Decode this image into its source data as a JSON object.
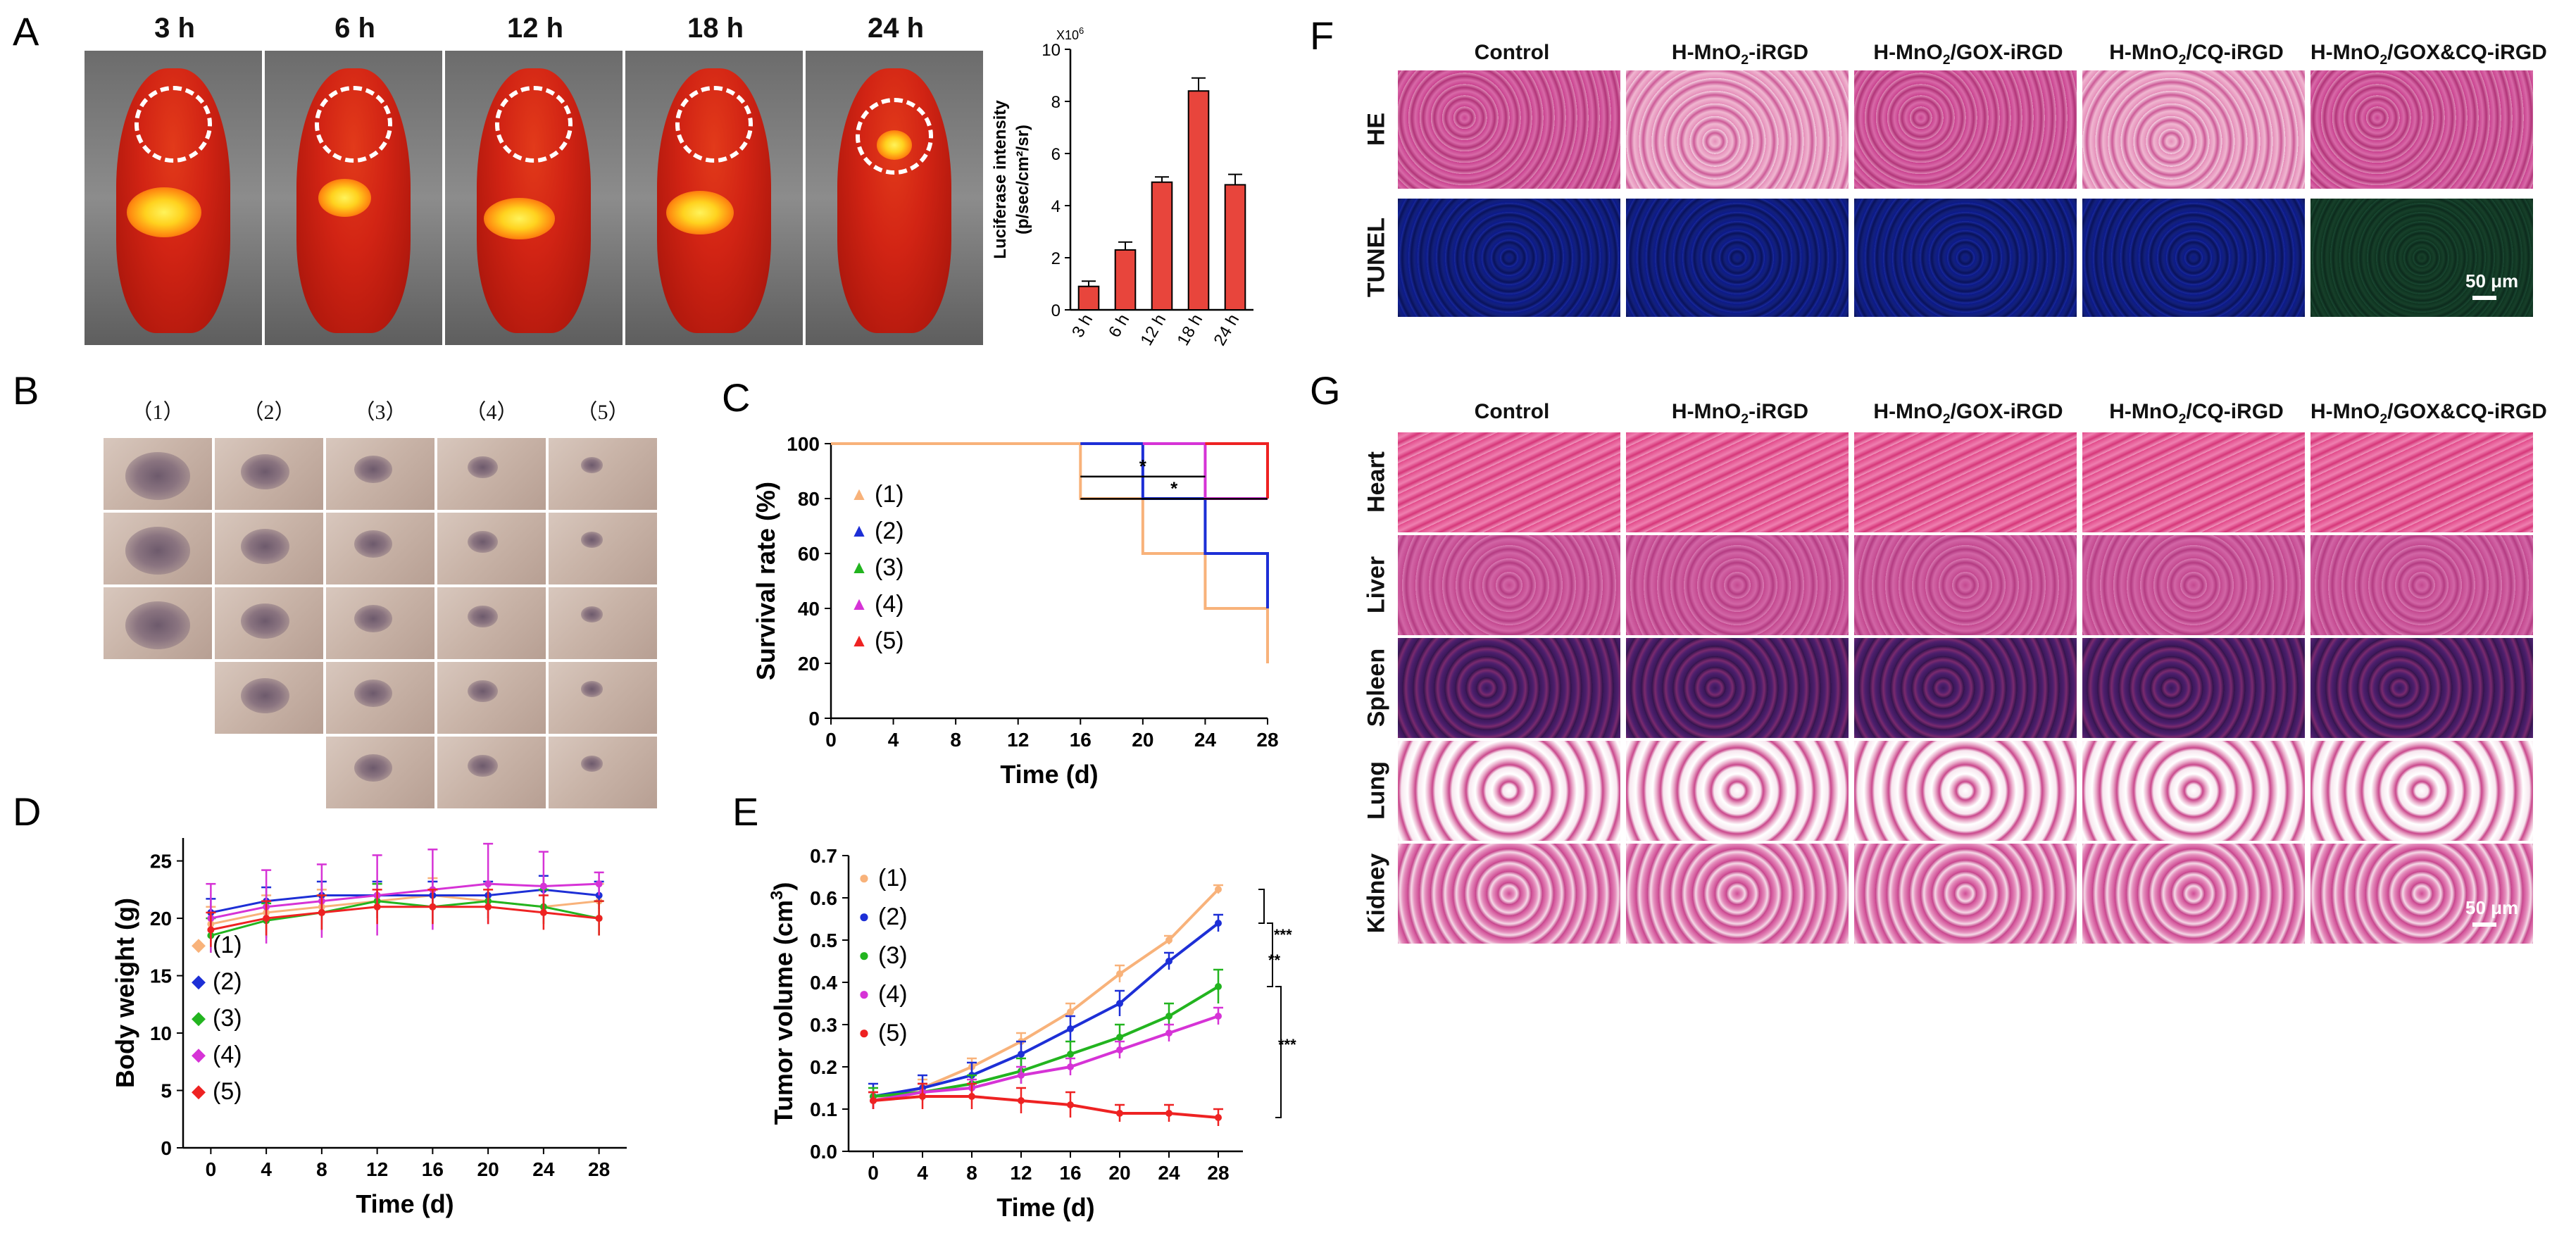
{
  "panels": {
    "A": "A",
    "B": "B",
    "C": "C",
    "D": "D",
    "E": "E",
    "F": "F",
    "G": "G"
  },
  "panelA": {
    "time_labels": [
      "3 h",
      "6 h",
      "12 h",
      "18 h",
      "24 h"
    ]
  },
  "panelB": {
    "group_labels": [
      "（1）",
      "（2）",
      "（3）",
      "（4）",
      "（5）"
    ]
  },
  "panelF": {
    "columns": [
      "Control",
      "H-MnO",
      "-iRGD",
      "H-MnO",
      "/GOX-iRGD",
      "H-MnO",
      "/CQ-iRGD",
      "H-MnO",
      "/GOX&CQ-iRGD"
    ],
    "column_titles": [
      {
        "a": "Control",
        "sub": "",
        "b": ""
      },
      {
        "a": "H-MnO",
        "sub": "2",
        "b": "-iRGD"
      },
      {
        "a": "H-MnO",
        "sub": "2",
        "b": "/GOX-iRGD"
      },
      {
        "a": "H-MnO",
        "sub": "2",
        "b": "/CQ-iRGD"
      },
      {
        "a": "H-MnO",
        "sub": "2",
        "b": "/GOX&CQ-iRGD"
      }
    ],
    "rows": [
      "HE",
      "TUNEL"
    ],
    "scale_label": "50 μm"
  },
  "panelG": {
    "column_titles": [
      {
        "a": "Control",
        "sub": "",
        "b": ""
      },
      {
        "a": "H-MnO",
        "sub": "2",
        "b": "-iRGD"
      },
      {
        "a": "H-MnO",
        "sub": "2",
        "b": "/GOX-iRGD"
      },
      {
        "a": "H-MnO",
        "sub": "2",
        "b": "/CQ-iRGD"
      },
      {
        "a": "H-MnO",
        "sub": "2",
        "b": "/GOX&CQ-iRGD"
      }
    ],
    "rows": [
      "Heart",
      "Liver",
      "Spleen",
      "Lung",
      "Kidney"
    ],
    "scale_label": "50 μm"
  },
  "chart_data": [
    {
      "id": "A-bar",
      "type": "bar",
      "categories": [
        "3 h",
        "6 h",
        "12 h",
        "18 h",
        "24 h"
      ],
      "values": [
        0.9,
        2.3,
        4.9,
        8.4,
        4.8
      ],
      "errors": [
        0.2,
        0.3,
        0.2,
        0.5,
        0.4
      ],
      "ylabel_lines": [
        "Luciferase intensity",
        "(p/sec/cm²/sr)"
      ],
      "multiplier": "X10",
      "multiplier_exp": "6",
      "ylim": [
        0,
        10
      ],
      "yticks": [
        0,
        2,
        4,
        6,
        8,
        10
      ],
      "color": "#e8453c"
    },
    {
      "id": "C-survival",
      "type": "line",
      "xlabel": "Time (d)",
      "ylabel": "Survival rate (%)",
      "xlim": [
        0,
        28
      ],
      "ylim": [
        0,
        100
      ],
      "xticks": [
        0,
        4,
        8,
        12,
        16,
        20,
        24,
        28
      ],
      "yticks": [
        0,
        20,
        40,
        60,
        80,
        100
      ],
      "series": [
        {
          "name": "(1)",
          "color": "#f8b27a",
          "steps": [
            [
              0,
              100
            ],
            [
              16,
              100
            ],
            [
              16,
              80
            ],
            [
              20,
              80
            ],
            [
              20,
              60
            ],
            [
              24,
              60
            ],
            [
              24,
              40
            ],
            [
              28,
              40
            ],
            [
              28,
              20
            ]
          ]
        },
        {
          "name": "(2)",
          "color": "#1d2fd6",
          "steps": [
            [
              16,
              100
            ],
            [
              20,
              100
            ],
            [
              20,
              80
            ],
            [
              24,
              80
            ],
            [
              24,
              60
            ],
            [
              28,
              60
            ],
            [
              28,
              40
            ]
          ]
        },
        {
          "name": "(3)",
          "color": "#22b41f",
          "steps": [
            [
              24,
              100
            ],
            [
              28,
              100
            ]
          ]
        },
        {
          "name": "(4)",
          "color": "#d633d6",
          "steps": [
            [
              20,
              100
            ],
            [
              24,
              100
            ],
            [
              24,
              80
            ],
            [
              28,
              80
            ]
          ]
        },
        {
          "name": "(5)",
          "color": "#ee2222",
          "steps": [
            [
              24,
              100
            ],
            [
              28,
              100
            ],
            [
              28,
              80
            ]
          ]
        }
      ],
      "annotations": [
        "*",
        "*"
      ]
    },
    {
      "id": "D-bodyweight",
      "type": "line",
      "xlabel": "Time (d)",
      "ylabel": "Body weight (g)",
      "xlim": [
        -2,
        30
      ],
      "ylim": [
        0,
        27
      ],
      "xticks": [
        0,
        4,
        8,
        12,
        16,
        20,
        24,
        28
      ],
      "yticks": [
        0,
        5,
        10,
        15,
        20,
        25
      ],
      "x": [
        0,
        4,
        8,
        12,
        16,
        20,
        24,
        28
      ],
      "series": [
        {
          "name": "(1)",
          "color": "#f8b27a",
          "values": [
            19.5,
            20.5,
            21.0,
            21.5,
            22.0,
            21.5,
            21.0,
            21.5
          ],
          "err": [
            1.5,
            1.5,
            1.5,
            1.5,
            1.5,
            1.5,
            1.5,
            1.5
          ]
        },
        {
          "name": "(2)",
          "color": "#1d2fd6",
          "values": [
            20.5,
            21.5,
            22.0,
            22.0,
            22.0,
            22.0,
            22.5,
            22.0
          ],
          "err": [
            1.2,
            1.2,
            1.2,
            1.2,
            1.2,
            1.2,
            1.2,
            1.2
          ]
        },
        {
          "name": "(3)",
          "color": "#22b41f",
          "values": [
            18.5,
            19.8,
            20.5,
            21.5,
            21.0,
            21.5,
            21.0,
            20.0
          ],
          "err": [
            1.5,
            1.5,
            1.5,
            1.5,
            1.5,
            1.5,
            1.5,
            1.5
          ]
        },
        {
          "name": "(4)",
          "color": "#d633d6",
          "values": [
            20.0,
            21.0,
            21.5,
            22.0,
            22.5,
            23.0,
            22.8,
            23.0
          ],
          "err": [
            3.0,
            3.2,
            3.2,
            3.5,
            3.5,
            3.5,
            3.0,
            1.0
          ]
        },
        {
          "name": "(5)",
          "color": "#ee2222",
          "values": [
            19.0,
            20.0,
            20.5,
            21.0,
            21.0,
            21.0,
            20.5,
            20.0
          ],
          "err": [
            1.5,
            1.5,
            1.5,
            1.5,
            1.5,
            1.5,
            1.5,
            1.5
          ]
        }
      ]
    },
    {
      "id": "E-tumor",
      "type": "line",
      "xlabel": "Time (d)",
      "ylabel_a": "Tumor volume (cm",
      "ylabel_sup": "3",
      "ylabel_b": ")",
      "xlim": [
        -2,
        30
      ],
      "ylim": [
        0,
        0.7
      ],
      "xticks": [
        0,
        4,
        8,
        12,
        16,
        20,
        24,
        28
      ],
      "yticks": [
        0.0,
        0.1,
        0.2,
        0.3,
        0.4,
        0.5,
        0.6,
        0.7
      ],
      "x": [
        0,
        4,
        8,
        12,
        16,
        20,
        24,
        28
      ],
      "series": [
        {
          "name": "(1)",
          "color": "#f8b27a",
          "values": [
            0.12,
            0.15,
            0.2,
            0.26,
            0.33,
            0.42,
            0.5,
            0.62
          ],
          "err": [
            0.02,
            0.02,
            0.02,
            0.02,
            0.02,
            0.02,
            0.01,
            0.01
          ]
        },
        {
          "name": "(2)",
          "color": "#1d2fd6",
          "values": [
            0.13,
            0.15,
            0.18,
            0.23,
            0.29,
            0.35,
            0.45,
            0.54
          ],
          "err": [
            0.03,
            0.03,
            0.03,
            0.03,
            0.03,
            0.03,
            0.02,
            0.02
          ]
        },
        {
          "name": "(3)",
          "color": "#22b41f",
          "values": [
            0.13,
            0.14,
            0.16,
            0.19,
            0.23,
            0.27,
            0.32,
            0.39
          ],
          "err": [
            0.02,
            0.02,
            0.02,
            0.03,
            0.03,
            0.03,
            0.03,
            0.04
          ]
        },
        {
          "name": "(4)",
          "color": "#d633d6",
          "values": [
            0.12,
            0.14,
            0.15,
            0.18,
            0.2,
            0.24,
            0.28,
            0.32
          ],
          "err": [
            0.02,
            0.02,
            0.02,
            0.02,
            0.02,
            0.02,
            0.02,
            0.02
          ]
        },
        {
          "name": "(5)",
          "color": "#ee2222",
          "values": [
            0.12,
            0.13,
            0.13,
            0.12,
            0.11,
            0.09,
            0.09,
            0.08
          ],
          "err": [
            0.02,
            0.03,
            0.03,
            0.03,
            0.03,
            0.02,
            0.02,
            0.02
          ]
        }
      ],
      "annotations": [
        "***",
        "**",
        "***"
      ]
    }
  ]
}
